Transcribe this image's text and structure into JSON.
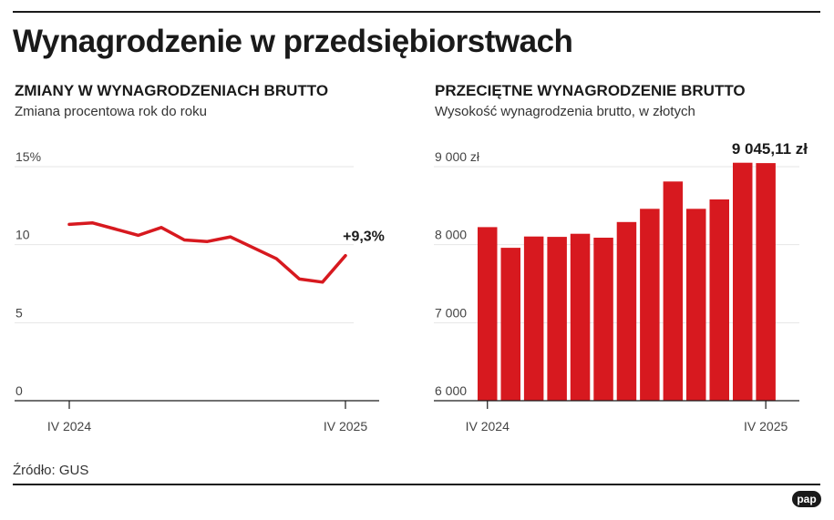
{
  "title": "Wynagrodzenie w przedsiębiorstwach",
  "source": "Źródło: GUS",
  "logo": "pap",
  "colors": {
    "series": "#d7191f",
    "text": "#1a1a1a",
    "grid": "#e6e6e6"
  },
  "chart_data": [
    {
      "type": "line",
      "title": "ZMIANY W WYNAGRODZENIACH BRUTTO",
      "subtitle": "Zmiana procentowa rok do roku",
      "yticks": [
        "15%",
        "10",
        "5",
        "0"
      ],
      "ytick_values": [
        15,
        10,
        5,
        0
      ],
      "ylim": [
        0,
        15
      ],
      "xlabels": [
        "IV 2024",
        "IV 2025"
      ],
      "values": [
        11.3,
        11.4,
        11.0,
        10.6,
        11.1,
        10.3,
        10.2,
        10.5,
        9.8,
        9.1,
        7.8,
        7.6,
        9.3
      ],
      "end_label": "+9,3%",
      "grid": true
    },
    {
      "type": "bar",
      "title": "PRZECIĘTNE WYNAGRODZENIE BRUTTO",
      "subtitle": "Wysokość wynagrodzenia brutto, w złotych",
      "yticks": [
        "9 000 zł",
        "8 000",
        "7 000",
        "6 000"
      ],
      "ytick_values": [
        9000,
        8000,
        7000,
        6000
      ],
      "ylim": [
        6000,
        9000
      ],
      "xlabels": [
        "IV 2024",
        "IV 2025"
      ],
      "values": [
        8225,
        7960,
        8105,
        8100,
        8140,
        8090,
        8290,
        8460,
        8810,
        8460,
        8580,
        9050,
        9045.11
      ],
      "end_label": "9 045,11 zł",
      "grid": true
    }
  ]
}
